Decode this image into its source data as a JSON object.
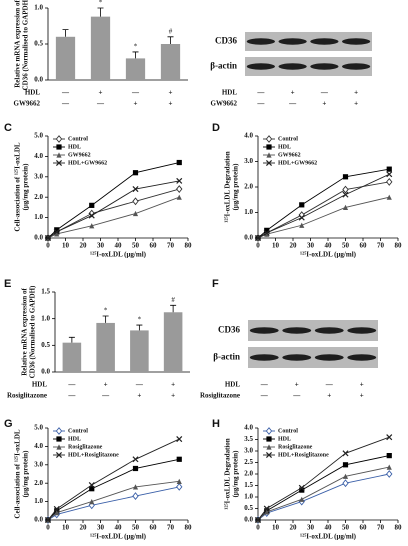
{
  "chart_data": [
    {
      "type": "bar",
      "ylabel": [
        "Relative mRNA expression of",
        "CD36 (Normalised to GAPDH)"
      ],
      "categories": [
        null,
        null,
        null,
        null
      ],
      "values": [
        0.6,
        0.88,
        0.3,
        0.5
      ],
      "errors": [
        0.1,
        0.12,
        0.09,
        0.1
      ],
      "annotations": [
        null,
        "*",
        "*",
        "#"
      ],
      "color": "#9a9a9a",
      "conditions": [
        {
          "name": "HDL",
          "signs": [
            "—",
            "+",
            "—",
            "+"
          ]
        },
        {
          "name": "GW9662",
          "signs": [
            "—",
            "—",
            "+",
            "+"
          ]
        }
      ],
      "ylim": [
        0,
        1.0
      ],
      "yticks": [
        {
          "value": 0,
          "label": "0.0"
        },
        0.5,
        {
          "value": 1,
          "label": "1.0"
        }
      ]
    },
    {
      "type": "blot",
      "bands": [
        "CD36",
        "β-actin"
      ],
      "conditions": [
        {
          "name": "HDL",
          "signs": [
            "—",
            "+",
            "—",
            "+"
          ]
        },
        {
          "name": "GW9662",
          "signs": [
            "—",
            "—",
            "+",
            "+"
          ]
        }
      ]
    },
    {
      "type": "line",
      "panel": "C",
      "ylabel": [
        "Cell-association of ¹²⁵I-oxLDL",
        "(μg/mg protein)"
      ],
      "xlabel": "¹²⁵I-oxLDL (μg/ml)",
      "x": [
        0,
        5,
        25,
        50,
        75
      ],
      "series": [
        {
          "name": "Control",
          "color": "#333333",
          "marker": "diamond",
          "values": [
            0,
            0.3,
            1.2,
            1.8,
            2.4
          ]
        },
        {
          "name": "HDL",
          "color": "#000000",
          "marker": "square",
          "values": [
            0,
            0.4,
            1.6,
            3.2,
            3.7
          ]
        },
        {
          "name": "GW9662",
          "color": "#555555",
          "marker": "triangle",
          "values": [
            0,
            0.2,
            0.6,
            1.2,
            2.0
          ]
        },
        {
          "name": "HDL+GW9662",
          "color": "#222222",
          "marker": "cross",
          "values": [
            0,
            0.3,
            1.1,
            2.4,
            2.8
          ]
        }
      ],
      "xlim": [
        0,
        80
      ],
      "xticks": [
        0,
        10,
        20,
        30,
        40,
        50,
        60,
        70,
        80
      ],
      "ylim": [
        0,
        5
      ],
      "yticks": [
        {
          "value": 0,
          "label": "0.0"
        },
        {
          "value": 1,
          "label": "1.0"
        },
        {
          "value": 2,
          "label": "2.0"
        },
        {
          "value": 3,
          "label": "3.0"
        },
        {
          "value": 4,
          "label": "4.0"
        },
        {
          "value": 5,
          "label": "5.0"
        }
      ]
    },
    {
      "type": "line",
      "panel": "D",
      "ylabel": [
        "¹²⁵I-oxLDL Degradation",
        "(μg/mg protein)"
      ],
      "xlabel": "¹²⁵I-oxLDL (μg/ml)",
      "x": [
        0,
        5,
        25,
        50,
        75
      ],
      "series": [
        {
          "name": "Control",
          "color": "#333333",
          "marker": "diamond",
          "values": [
            0,
            0.2,
            0.9,
            1.9,
            2.2
          ]
        },
        {
          "name": "HDL",
          "color": "#000000",
          "marker": "square",
          "values": [
            0,
            0.3,
            1.3,
            2.4,
            2.7
          ]
        },
        {
          "name": "GW9662",
          "color": "#555555",
          "marker": "triangle",
          "values": [
            0,
            0.15,
            0.5,
            1.2,
            1.6
          ]
        },
        {
          "name": "HDL+GW9662",
          "color": "#222222",
          "marker": "cross",
          "values": [
            0,
            0.2,
            0.8,
            1.7,
            2.5
          ]
        }
      ],
      "xlim": [
        0,
        80
      ],
      "xticks": [
        0,
        10,
        20,
        30,
        40,
        50,
        60,
        70,
        80
      ],
      "ylim": [
        0,
        4
      ],
      "yticks": [
        {
          "value": 0,
          "label": "0.0"
        },
        {
          "value": 1,
          "label": "1.0"
        },
        {
          "value": 2,
          "label": "2.0"
        },
        {
          "value": 3,
          "label": "3.0"
        },
        {
          "value": 4,
          "label": "4.0"
        }
      ]
    },
    {
      "type": "bar",
      "panel": "E",
      "ylabel": [
        "Relative mRNA expression of",
        "CD36 (Normalised to GAPDH)"
      ],
      "categories": [
        null,
        null,
        null,
        null
      ],
      "values": [
        0.55,
        0.92,
        0.78,
        1.12
      ],
      "errors": [
        0.1,
        0.13,
        0.1,
        0.13
      ],
      "annotations": [
        null,
        "*",
        "*",
        "#"
      ],
      "color": "#9a9a9a",
      "conditions": [
        {
          "name": "HDL",
          "signs": [
            "—",
            "+",
            "—",
            "+"
          ]
        },
        {
          "name": "Rosiglitazone",
          "signs": [
            "—",
            "—",
            "+",
            "+"
          ]
        }
      ],
      "ylim": [
        0,
        1.5
      ],
      "yticks": [
        {
          "value": 0,
          "label": "0.0"
        },
        0.5,
        {
          "value": 1,
          "label": "1.0"
        },
        1.5
      ]
    },
    {
      "type": "blot",
      "panel": "F",
      "bands": [
        "CD36",
        "β-actin"
      ],
      "conditions": [
        {
          "name": "HDL",
          "signs": [
            "—",
            "+",
            "—",
            "+"
          ]
        },
        {
          "name": "Rosiglitazone",
          "signs": [
            "—",
            "—",
            "+",
            "+"
          ]
        }
      ]
    },
    {
      "type": "line",
      "panel": "G",
      "ylabel": [
        "Cell-association of ¹²⁵I-oxLDL",
        "(μg/mg protein)"
      ],
      "xlabel": "¹²⁵I-oxLDL (μg/ml)",
      "x": [
        0,
        5,
        25,
        50,
        75
      ],
      "series": [
        {
          "name": "Control",
          "color": "#3a5fa8",
          "marker": "diamond",
          "values": [
            0,
            0.3,
            0.8,
            1.3,
            1.8
          ]
        },
        {
          "name": "HDL",
          "color": "#000000",
          "marker": "square",
          "values": [
            0,
            0.5,
            1.7,
            2.8,
            3.3
          ]
        },
        {
          "name": "Rosiglitazone",
          "color": "#555555",
          "marker": "triangle",
          "values": [
            0,
            0.4,
            1.0,
            1.8,
            2.1
          ]
        },
        {
          "name": "HDL+Rosiglitazone",
          "color": "#222222",
          "marker": "cross",
          "values": [
            0,
            0.6,
            1.9,
            3.3,
            4.4
          ]
        }
      ],
      "xlim": [
        0,
        80
      ],
      "xticks": [
        0,
        10,
        20,
        30,
        40,
        50,
        60,
        70,
        80
      ],
      "ylim": [
        0,
        5
      ],
      "yticks": [
        {
          "value": 0,
          "label": "0.0"
        },
        {
          "value": 1,
          "label": "1.0"
        },
        {
          "value": 2,
          "label": "2.0"
        },
        {
          "value": 3,
          "label": "3.0"
        },
        {
          "value": 4,
          "label": "4.0"
        },
        {
          "value": 5,
          "label": "5.0"
        }
      ]
    },
    {
      "type": "line",
      "panel": "H",
      "ylabel": [
        "¹²⁵I-oxLDL Degradation",
        "(μg/mg protein)"
      ],
      "xlabel": "¹²⁵I-oxLDL (μg/ml)",
      "x": [
        0,
        5,
        25,
        50,
        75
      ],
      "series": [
        {
          "name": "Control",
          "color": "#3a5fa8",
          "marker": "diamond",
          "values": [
            0,
            0.3,
            0.8,
            1.6,
            2.0
          ]
        },
        {
          "name": "HDL",
          "color": "#000000",
          "marker": "square",
          "values": [
            0,
            0.4,
            1.3,
            2.4,
            2.8
          ]
        },
        {
          "name": "Rosiglitazone",
          "color": "#555555",
          "marker": "triangle",
          "values": [
            0,
            0.35,
            0.9,
            1.9,
            2.3
          ]
        },
        {
          "name": "HDL+Rosiglitazone",
          "color": "#222222",
          "marker": "cross",
          "values": [
            0,
            0.5,
            1.4,
            2.9,
            3.6
          ]
        }
      ],
      "xlim": [
        0,
        80
      ],
      "xticks": [
        0,
        10,
        20,
        30,
        40,
        50,
        60,
        70,
        80
      ],
      "ylim": [
        0,
        4
      ],
      "yticks": [
        {
          "value": 0,
          "label": "0.0"
        },
        0.5,
        {
          "value": 1,
          "label": "1.0"
        },
        1.5,
        {
          "value": 2,
          "label": "2.0"
        },
        2.5,
        {
          "value": 3,
          "label": "3.0"
        },
        3.5,
        {
          "value": 4,
          "label": "4.0"
        }
      ]
    }
  ]
}
